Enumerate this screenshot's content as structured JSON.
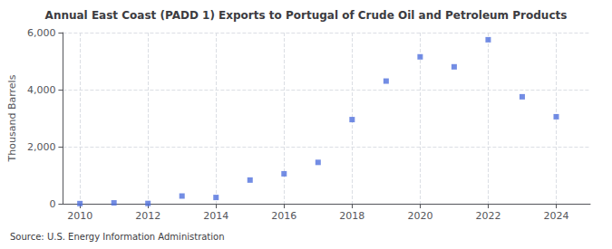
{
  "chart_data": {
    "type": "scatter",
    "title": "Annual East Coast (PADD 1) Exports to Portugal of Crude Oil and Petroleum Products",
    "ylabel": "Thousand Barrels",
    "annotations": [
      "Source: U.S. Energy Information Administration"
    ],
    "x": [
      2010,
      2011,
      2012,
      2013,
      2014,
      2015,
      2016,
      2017,
      2018,
      2019,
      2020,
      2021,
      2022,
      2023,
      2024
    ],
    "values": [
      5,
      30,
      10,
      270,
      220,
      830,
      1050,
      1450,
      2950,
      4300,
      5150,
      4800,
      5750,
      3750,
      3050
    ],
    "xlim": [
      2009.5,
      2025.0
    ],
    "xticks": [
      2010,
      2012,
      2014,
      2016,
      2018,
      2020,
      2022,
      2024
    ],
    "ylim": [
      0,
      6000
    ],
    "yticks": [
      0,
      {
        "value": 2000,
        "label": "2,000"
      },
      {
        "value": 4000,
        "label": "4,000"
      },
      {
        "value": 6000,
        "label": "6,000"
      }
    ],
    "grid": true,
    "marker": "square"
  }
}
